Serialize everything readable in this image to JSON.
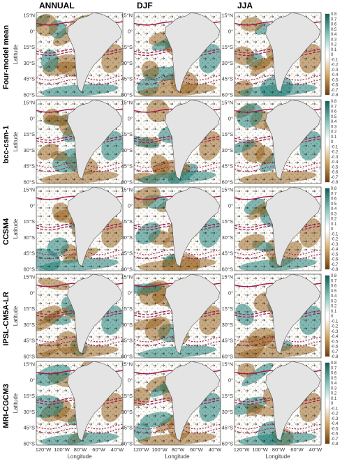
{
  "figure": {
    "columns": [
      "ANNUAL",
      "DJF",
      "JJA"
    ],
    "rows": [
      "Four-model mean",
      "bcc-csm-1",
      "CCSM4",
      "IPSL-CM5A-LR",
      "MRI-CGCM3"
    ],
    "lat_ticks": [
      "15°N",
      "0°",
      "15°S",
      "30°S",
      "45°S",
      "60°S"
    ],
    "lon_ticks": [
      "120°W",
      "100°W",
      "80°W",
      "60°W",
      "40°W"
    ],
    "lat_axis_label": "Latitude",
    "lon_axis_label": "Longitude",
    "colorbar_ticks": [
      "0.8",
      "0.7",
      "0.6",
      "0.5",
      "0.4",
      "0.3",
      "0.2",
      "0.1",
      "0",
      "-0.1",
      "-0.2",
      "-0.3",
      "-0.4",
      "-0.5",
      "-0.6",
      "-0.7",
      "-0.8"
    ],
    "colors": {
      "positive": "#1f7f78",
      "negative": "#9a6420",
      "neutral": "#ffffff",
      "land": "#e4e4e4",
      "contour": "#a3164f"
    }
  }
}
